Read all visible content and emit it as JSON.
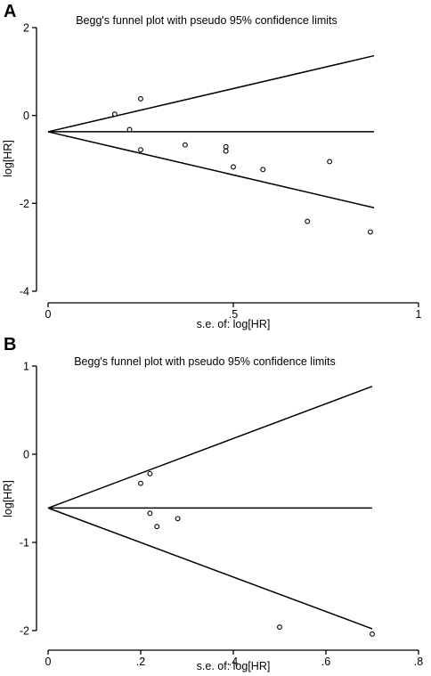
{
  "chart_data": [
    {
      "type": "scatter",
      "panel_label": "A",
      "title": "Begg's funnel plot with pseudo 95% confidence limits",
      "xlabel": "s.e. of: log[HR]",
      "ylabel": "log[HR]",
      "xlim": [
        0,
        1
      ],
      "ylim": [
        -4,
        2
      ],
      "xticks": [
        0,
        0.5,
        1
      ],
      "xtick_labels": [
        "0",
        ".5",
        "1"
      ],
      "yticks": [
        -4,
        -2,
        0,
        2
      ],
      "ytick_labels": [
        "-4",
        "-2",
        "0",
        "2"
      ],
      "pooled_estimate": -0.37,
      "limit_lines": {
        "x_start": 0,
        "x_end": 0.88,
        "upper_end": 1.36,
        "lower_end": -2.1
      },
      "points": [
        {
          "x": 0.18,
          "y": 0.03
        },
        {
          "x": 0.22,
          "y": -0.32
        },
        {
          "x": 0.25,
          "y": 0.38
        },
        {
          "x": 0.25,
          "y": -0.78
        },
        {
          "x": 0.37,
          "y": -0.67
        },
        {
          "x": 0.48,
          "y": -0.71
        },
        {
          "x": 0.48,
          "y": -0.81
        },
        {
          "x": 0.5,
          "y": -1.17
        },
        {
          "x": 0.58,
          "y": -1.23
        },
        {
          "x": 0.7,
          "y": -2.41
        },
        {
          "x": 0.76,
          "y": -1.05
        },
        {
          "x": 0.87,
          "y": -2.65
        }
      ]
    },
    {
      "type": "scatter",
      "panel_label": "B",
      "title": "Begg's funnel plot with pseudo 95% confidence limits",
      "xlabel": "s.e. of: log[HR]",
      "ylabel": "log[HR]",
      "xlim": [
        0,
        0.8
      ],
      "ylim": [
        -2,
        1
      ],
      "xticks": [
        0,
        0.2,
        0.4,
        0.6,
        0.8
      ],
      "xtick_labels": [
        "0",
        ".2",
        ".4",
        ".6",
        ".8"
      ],
      "yticks": [
        -2,
        -1,
        0,
        1
      ],
      "ytick_labels": [
        "-2",
        "-1",
        "0",
        "1"
      ],
      "pooled_estimate": -0.61,
      "limit_lines": {
        "x_start": 0,
        "x_end": 0.7,
        "upper_end": 0.77,
        "lower_end": -1.98
      },
      "points": [
        {
          "x": 0.2,
          "y": -0.33
        },
        {
          "x": 0.22,
          "y": -0.22
        },
        {
          "x": 0.22,
          "y": -0.67
        },
        {
          "x": 0.235,
          "y": -0.82
        },
        {
          "x": 0.28,
          "y": -0.73
        },
        {
          "x": 0.5,
          "y": -1.96
        },
        {
          "x": 0.7,
          "y": -2.04
        }
      ]
    }
  ]
}
